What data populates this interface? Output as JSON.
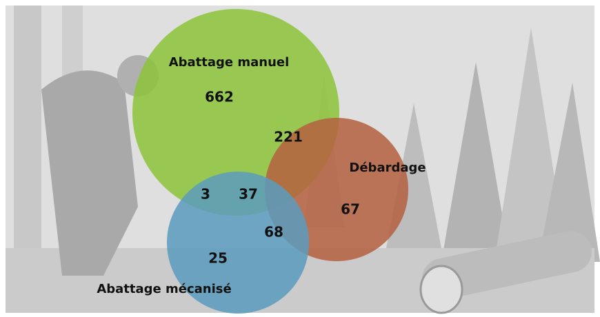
{
  "chart_data": {
    "type": "venn",
    "sets": [
      {
        "name": "Abattage manuel",
        "color": "#8cc43a"
      },
      {
        "name": "Débardage",
        "color": "#b5603f"
      },
      {
        "name": "Abattage mécanisé",
        "color": "#5b9bbd"
      }
    ],
    "regions": [
      {
        "sets": [
          "Abattage manuel"
        ],
        "value": 662
      },
      {
        "sets": [
          "Abattage manuel",
          "Débardage"
        ],
        "value": 221
      },
      {
        "sets": [
          "Débardage"
        ],
        "value": 67
      },
      {
        "sets": [
          "Abattage manuel",
          "Abattage mécanisé"
        ],
        "value": 3
      },
      {
        "sets": [
          "Abattage manuel",
          "Débardage",
          "Abattage mécanisé"
        ],
        "value": 37
      },
      {
        "sets": [
          "Débardage",
          "Abattage mécanisé"
        ],
        "value": 68
      },
      {
        "sets": [
          "Abattage mécanisé"
        ],
        "value": 25
      }
    ]
  }
}
